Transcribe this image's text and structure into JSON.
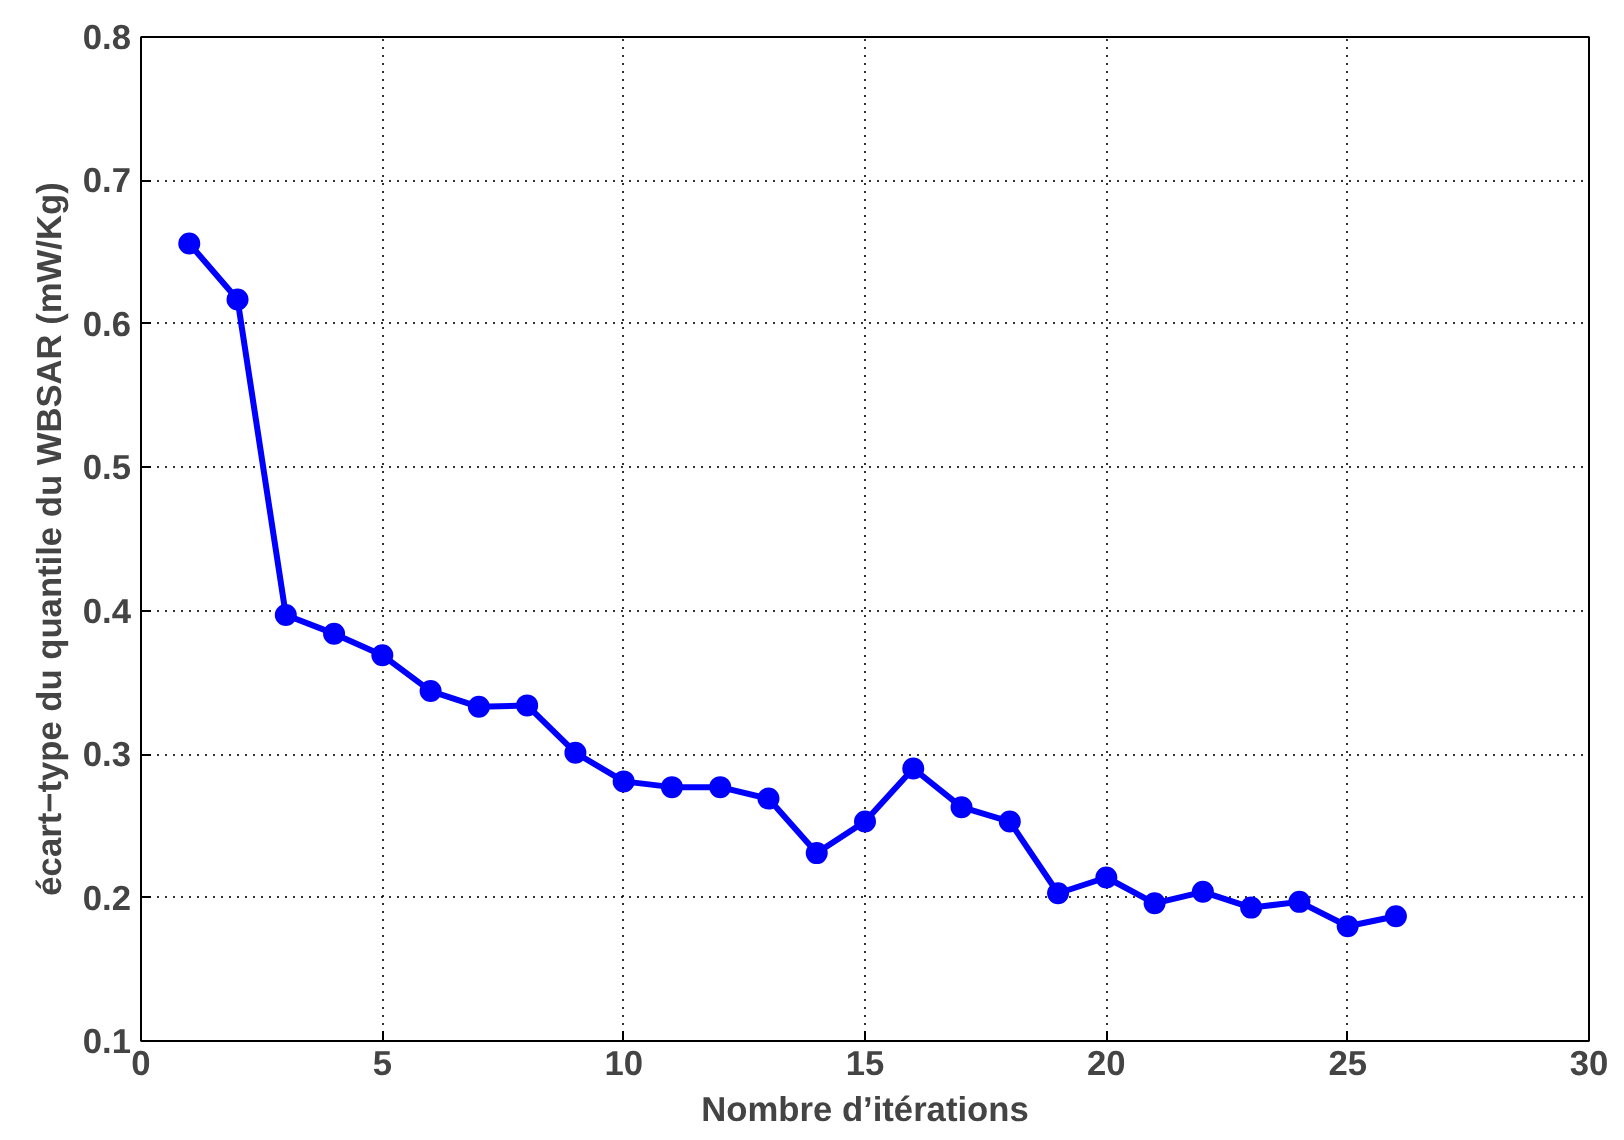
{
  "chart_data": {
    "type": "line",
    "xlabel": "Nombre d’itérations",
    "ylabel": "écart−type du quantile du WBSAR (mW/Kg)",
    "x": [
      1,
      2,
      3,
      4,
      5,
      6,
      7,
      8,
      9,
      10,
      11,
      12,
      13,
      14,
      15,
      16,
      17,
      18,
      19,
      20,
      21,
      22,
      23,
      24,
      25,
      26
    ],
    "series": [
      {
        "color": "#0000ff",
        "values": [
          0.656,
          0.617,
          0.397,
          0.384,
          0.369,
          0.344,
          0.333,
          0.334,
          0.301,
          0.281,
          0.277,
          0.277,
          0.269,
          0.231,
          0.253,
          0.29,
          0.263,
          0.253,
          0.203,
          0.214,
          0.196,
          0.204,
          0.193,
          0.197,
          0.18,
          0.187
        ]
      }
    ],
    "xlim": [
      0,
      30
    ],
    "xticks": [
      0,
      5,
      10,
      15,
      20,
      25,
      30
    ],
    "ylim": [
      0.1,
      0.8
    ],
    "yticks": [
      0.1,
      0.2,
      0.3,
      0.4,
      0.5,
      0.6,
      0.7,
      0.8
    ],
    "grid": true,
    "marker": "circle",
    "line_style": "solid"
  }
}
